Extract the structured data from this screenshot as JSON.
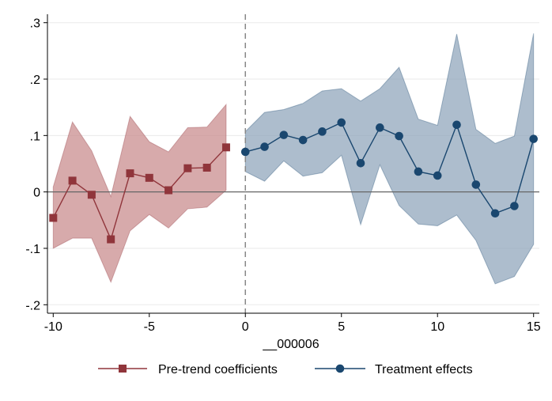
{
  "chart_data": {
    "type": "line",
    "xlabel": "__000006",
    "ylabel": "",
    "xlim": [
      -10.3,
      15.3
    ],
    "ylim": [
      -0.215,
      0.315
    ],
    "x_ticks": [
      -10,
      -5,
      0,
      5,
      10,
      15
    ],
    "x_tick_labels": [
      "-10",
      "-5",
      "0",
      "5",
      "10",
      "15"
    ],
    "y_ticks": [
      -0.2,
      -0.1,
      0,
      0.1,
      0.2,
      0.3
    ],
    "y_tick_labels": [
      "-.2",
      "-.1",
      "0",
      ".1",
      ".2",
      ".3"
    ],
    "grid": "horizontal",
    "reference_lines": {
      "horizontal_at": 0,
      "vertical_dashed_at": 0
    },
    "legend_position": "bottom",
    "series": [
      {
        "name": "Pre-trend coefficients",
        "color": "#90353b",
        "band_color": "#c8898b",
        "marker": "square",
        "x": [
          -10,
          -9,
          -8,
          -7,
          -6,
          -5,
          -4,
          -3,
          -2,
          -1
        ],
        "values": [
          -0.046,
          0.02,
          -0.005,
          -0.084,
          0.033,
          0.025,
          0.003,
          0.042,
          0.043,
          0.079
        ],
        "upper": [
          0.009,
          0.124,
          0.073,
          -0.008,
          0.134,
          0.089,
          0.071,
          0.114,
          0.115,
          0.155
        ],
        "lower": [
          -0.1,
          -0.082,
          -0.082,
          -0.16,
          -0.069,
          -0.04,
          -0.064,
          -0.03,
          -0.027,
          0.003
        ]
      },
      {
        "name": "Treatment effects",
        "color": "#1a476f",
        "band_color": "#8ea4ba",
        "marker": "circle",
        "x": [
          0,
          1,
          2,
          3,
          4,
          5,
          6,
          7,
          8,
          9,
          10,
          11,
          12,
          13,
          14,
          15
        ],
        "values": [
          0.071,
          0.08,
          0.101,
          0.092,
          0.107,
          0.123,
          0.051,
          0.114,
          0.099,
          0.036,
          0.029,
          0.119,
          0.013,
          -0.038,
          -0.025,
          0.094
        ],
        "upper": [
          0.107,
          0.141,
          0.146,
          0.157,
          0.179,
          0.183,
          0.161,
          0.183,
          0.221,
          0.129,
          0.118,
          0.28,
          0.111,
          0.086,
          0.099,
          0.281
        ],
        "lower": [
          0.036,
          0.019,
          0.055,
          0.028,
          0.034,
          0.065,
          -0.058,
          0.048,
          -0.024,
          -0.057,
          -0.06,
          -0.041,
          -0.086,
          -0.163,
          -0.15,
          -0.093
        ]
      }
    ]
  }
}
